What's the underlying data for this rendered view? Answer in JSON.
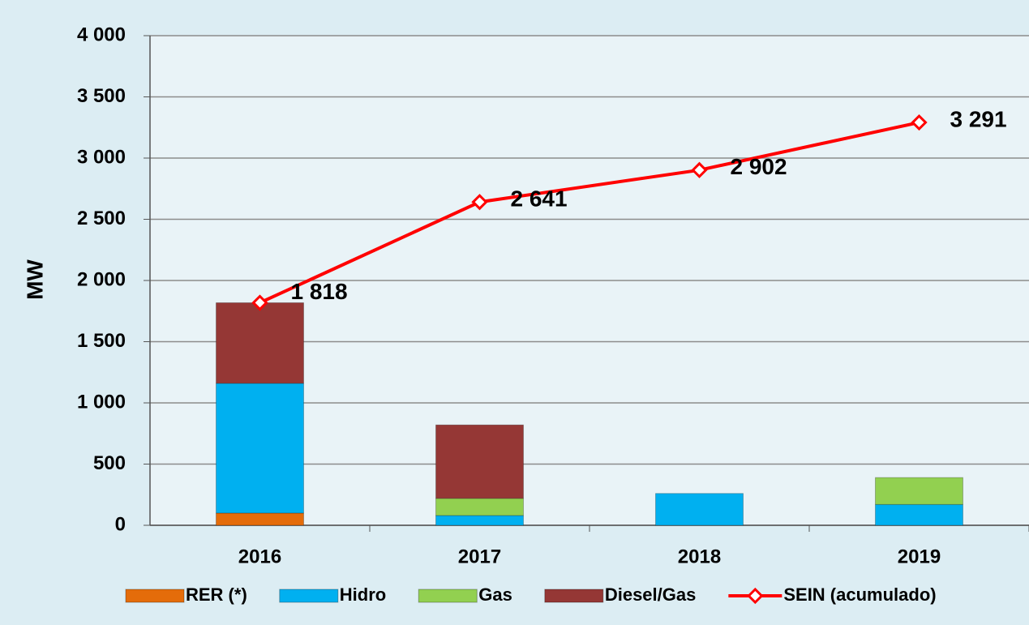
{
  "chart_data": {
    "type": "bar",
    "y_label": "MW",
    "categories": [
      "2016",
      "2017",
      "2018",
      "2019"
    ],
    "series": [
      {
        "name": "RER (*)",
        "color": "#e46c0a",
        "values": [
          100,
          0,
          0,
          0
        ]
      },
      {
        "name": "Hidro",
        "color": "#00b0f0",
        "values": [
          1060,
          80,
          260,
          170
        ]
      },
      {
        "name": "Gas",
        "color": "#92d050",
        "values": [
          0,
          140,
          0,
          220
        ]
      },
      {
        "name": "Diesel/Gas",
        "color": "#953735",
        "values": [
          658,
          600,
          0,
          0
        ]
      }
    ],
    "line": {
      "name": "SEIN (acumulado)",
      "color": "#ff0000",
      "values": [
        1818,
        2641,
        2902,
        3291
      ],
      "value_labels": [
        "1 818",
        "2 641",
        "2 902",
        "3 291"
      ]
    },
    "ylim": [
      0,
      4000
    ],
    "yticks": [
      0,
      500,
      {
        "value": 1000,
        "label": "1 000"
      },
      {
        "value": 1500,
        "label": "1 500"
      },
      {
        "value": 2000,
        "label": "2 000"
      },
      {
        "value": 2500,
        "label": "2 500"
      },
      {
        "value": 3000,
        "label": "3 000"
      },
      {
        "value": 3500,
        "label": "3 500"
      },
      {
        "value": 4000,
        "label": "4 000"
      }
    ],
    "grid": true
  }
}
